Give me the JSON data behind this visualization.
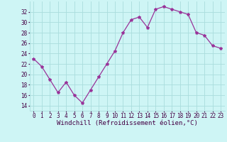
{
  "hours": [
    0,
    1,
    2,
    3,
    4,
    5,
    6,
    7,
    8,
    9,
    10,
    11,
    12,
    13,
    14,
    15,
    16,
    17,
    18,
    19,
    20,
    21,
    22,
    23
  ],
  "values": [
    23.0,
    21.5,
    19.0,
    16.5,
    18.5,
    16.0,
    14.5,
    17.0,
    19.5,
    22.0,
    24.5,
    28.0,
    30.5,
    31.0,
    29.0,
    32.5,
    33.0,
    32.5,
    32.0,
    31.5,
    28.0,
    27.5,
    25.5,
    25.0
  ],
  "line_color": "#993399",
  "marker": "*",
  "marker_size": 3,
  "bg_color": "#cef5f5",
  "grid_color": "#aadddd",
  "xlabel": "Windchill (Refroidissement éolien,°C)",
  "ylim": [
    13,
    34
  ],
  "xlim": [
    -0.5,
    23.5
  ],
  "yticks": [
    14,
    16,
    18,
    20,
    22,
    24,
    26,
    28,
    30,
    32
  ],
  "xticks": [
    0,
    1,
    2,
    3,
    4,
    5,
    6,
    7,
    8,
    9,
    10,
    11,
    12,
    13,
    14,
    15,
    16,
    17,
    18,
    19,
    20,
    21,
    22,
    23
  ],
  "tick_label_fontsize": 5.5,
  "xlabel_fontsize": 6.5
}
